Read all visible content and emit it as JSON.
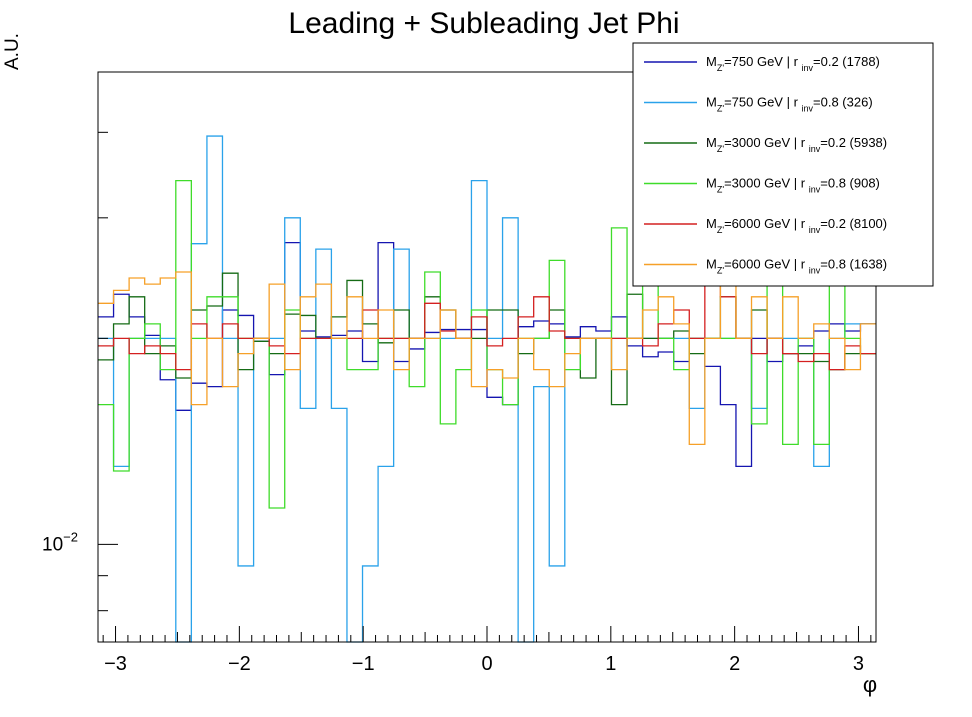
{
  "chart_data": {
    "type": "line",
    "title": "Leading + Subleading Jet Phi",
    "xlabel": "φ",
    "ylabel": "A.U.",
    "xlim": [
      -3.1416,
      3.1416
    ],
    "ylim": [
      0.0072,
      0.049
    ],
    "yscale": "log",
    "grid": false,
    "legend_position": "top-right",
    "x_ticks": [
      "−3",
      "−2",
      "−1",
      "0",
      "1",
      "2",
      "3"
    ],
    "y_tick_label": "10^{−2}",
    "y_tick_label_base": "10",
    "y_tick_label_exp": "−2",
    "bin_edges": [
      -3.1416,
      -3.0159,
      -2.8903,
      -2.7646,
      -2.6389,
      -2.5133,
      -2.3876,
      -2.2619,
      -2.1363,
      -2.0106,
      -1.885,
      -1.7593,
      -1.6336,
      -1.508,
      -1.3823,
      -1.2566,
      -1.131,
      -1.0053,
      -0.8796,
      -0.754,
      -0.6283,
      -0.5027,
      -0.377,
      -0.2513,
      -0.1257,
      0.0,
      0.1257,
      0.2513,
      0.377,
      0.5027,
      0.6283,
      0.754,
      0.8796,
      1.0053,
      1.131,
      1.2566,
      1.3823,
      1.508,
      1.6336,
      1.7593,
      1.885,
      2.0106,
      2.1363,
      2.2619,
      2.3876,
      2.5133,
      2.6389,
      2.7646,
      2.8903,
      3.0159,
      3.1416
    ],
    "series": [
      {
        "name": "M_{Z'}=750 GeV | r_{inv}=0.2 (1788)",
        "label_parts": [
          "M",
          "Z'",
          "=750 GeV | r ",
          "inv",
          "=0.2 (1788)"
        ],
        "color": "#1515b0",
        "values": [
          0.0215,
          0.0232,
          0.0215,
          0.0202,
          0.0174,
          0.0157,
          0.0172,
          0.017,
          0.022,
          0.0216,
          0.0198,
          0.0177,
          0.0276,
          0.0205,
          0.0201,
          0.0202,
          0.0205,
          0.0185,
          0.0276,
          0.0185,
          0.0193,
          0.0204,
          0.0206,
          0.0206,
          0.0206,
          0.0164,
          0.016,
          0.0208,
          0.0212,
          0.021,
          0.0201,
          0.0208,
          0.0205,
          0.0215,
          0.0195,
          0.0188,
          0.0191,
          0.0185,
          0.02,
          0.0182,
          0.016,
          0.013,
          0.02,
          0.0185,
          0.019,
          0.0195,
          0.0205,
          0.021,
          0.0205,
          0.021
        ]
      },
      {
        "name": "M_{Z'}=750 GeV | r_{inv}=0.8 (326)",
        "label_parts": [
          "M",
          "Z'",
          "=750 GeV | r ",
          "inv",
          "=0.8 (326)"
        ],
        "color": "#2aa2ea",
        "values": [
          0.02,
          0.013,
          0.02,
          0.02,
          0.02,
          0.005,
          0.0275,
          0.0395,
          0.02,
          0.0093,
          0.02,
          0.02,
          0.03,
          0.0158,
          0.027,
          0.0158,
          0.005,
          0.0093,
          0.013,
          0.027,
          0.02,
          0.02,
          0.02,
          0.02,
          0.034,
          0.02,
          0.03,
          0.005,
          0.017,
          0.0093,
          0.02,
          0.02,
          0.02,
          0.02,
          0.02,
          0.02,
          0.02,
          0.02,
          0.0158,
          0.02,
          0.02,
          0.02,
          0.0158,
          0.02,
          0.02,
          0.02,
          0.013,
          0.02,
          0.021,
          0.021
        ]
      },
      {
        "name": "M_{Z'}=3000 GeV | r_{inv}=0.2 (5938)",
        "label_parts": [
          "M",
          "Z'",
          "=3000 GeV | r ",
          "inv",
          "=0.2 (5938)"
        ],
        "color": "#156b15",
        "values": [
          0.0186,
          0.021,
          0.023,
          0.019,
          0.0195,
          0.0175,
          0.022,
          0.0223,
          0.0249,
          0.018,
          0.0198,
          0.019,
          0.0217,
          0.0216,
          0.02,
          0.0215,
          0.0243,
          0.021,
          0.0197,
          0.022,
          0.02,
          0.023,
          0.022,
          0.02,
          0.02,
          0.022,
          0.022,
          0.019,
          0.02,
          0.022,
          0.02,
          0.0175,
          0.02,
          0.016,
          0.0232,
          0.02,
          0.02,
          0.0205,
          0.019,
          0.02,
          0.023,
          0.02,
          0.022,
          0.02,
          0.019,
          0.019,
          0.0185,
          0.018,
          0.019,
          0.019
        ]
      },
      {
        "name": "M_{Z'}=3000 GeV | r_{inv}=0.8 (908)",
        "label_parts": [
          "M",
          "Z'",
          "=3000 GeV | r ",
          "inv",
          "=0.8 (908)"
        ],
        "color": "#3fdc2a",
        "values": [
          0.016,
          0.0128,
          0.02,
          0.021,
          0.018,
          0.034,
          0.02,
          0.023,
          0.023,
          0.02,
          0.02,
          0.0113,
          0.022,
          0.02,
          0.02,
          0.02,
          0.018,
          0.018,
          0.02,
          0.02,
          0.017,
          0.025,
          0.015,
          0.018,
          0.022,
          0.018,
          0.016,
          0.02,
          0.02,
          0.026,
          0.018,
          0.02,
          0.02,
          0.029,
          0.02,
          0.026,
          0.02,
          0.018,
          0.02,
          0.02,
          0.02,
          0.02,
          0.015,
          0.028,
          0.014,
          0.02,
          0.014,
          0.026,
          0.02,
          0.019
        ]
      },
      {
        "name": "M_{Z'}=6000 GeV | r_{inv}=0.2 (8100)",
        "label_parts": [
          "M",
          "Z'",
          "=6000 GeV | r ",
          "inv",
          "=0.2 (8100)"
        ],
        "color": "#d42020",
        "values": [
          0.0195,
          0.02,
          0.019,
          0.0195,
          0.019,
          0.018,
          0.021,
          0.02,
          0.021,
          0.02,
          0.02,
          0.0195,
          0.019,
          0.02,
          0.02,
          0.02,
          0.02,
          0.022,
          0.02,
          0.02,
          0.02,
          0.0225,
          0.0205,
          0.02,
          0.0215,
          0.0195,
          0.02,
          0.0215,
          0.023,
          0.0205,
          0.02,
          0.02,
          0.02,
          0.02,
          0.02,
          0.0195,
          0.021,
          0.022,
          0.02,
          0.025,
          0.023,
          0.02,
          0.019,
          0.02,
          0.019,
          0.0185,
          0.019,
          0.018,
          0.0195,
          0.019
        ]
      },
      {
        "name": "M_{Z'}=6000 GeV | r_{inv}=0.8 (1638)",
        "label_parts": [
          "M",
          "Z'",
          "=6000 GeV | r ",
          "inv",
          "=0.8 (1638)"
        ],
        "color": "#f6a028",
        "values": [
          0.0225,
          0.0235,
          0.0245,
          0.024,
          0.0245,
          0.025,
          0.016,
          0.02,
          0.017,
          0.019,
          0.02,
          0.024,
          0.018,
          0.023,
          0.024,
          0.02,
          0.023,
          0.02,
          0.022,
          0.018,
          0.02,
          0.02,
          0.022,
          0.02,
          0.017,
          0.018,
          0.0175,
          0.02,
          0.018,
          0.017,
          0.019,
          0.02,
          0.02,
          0.018,
          0.02,
          0.022,
          0.023,
          0.021,
          0.014,
          0.02,
          0.025,
          0.02,
          0.023,
          0.02,
          0.023,
          0.02,
          0.021,
          0.02,
          0.018,
          0.021
        ]
      }
    ]
  }
}
